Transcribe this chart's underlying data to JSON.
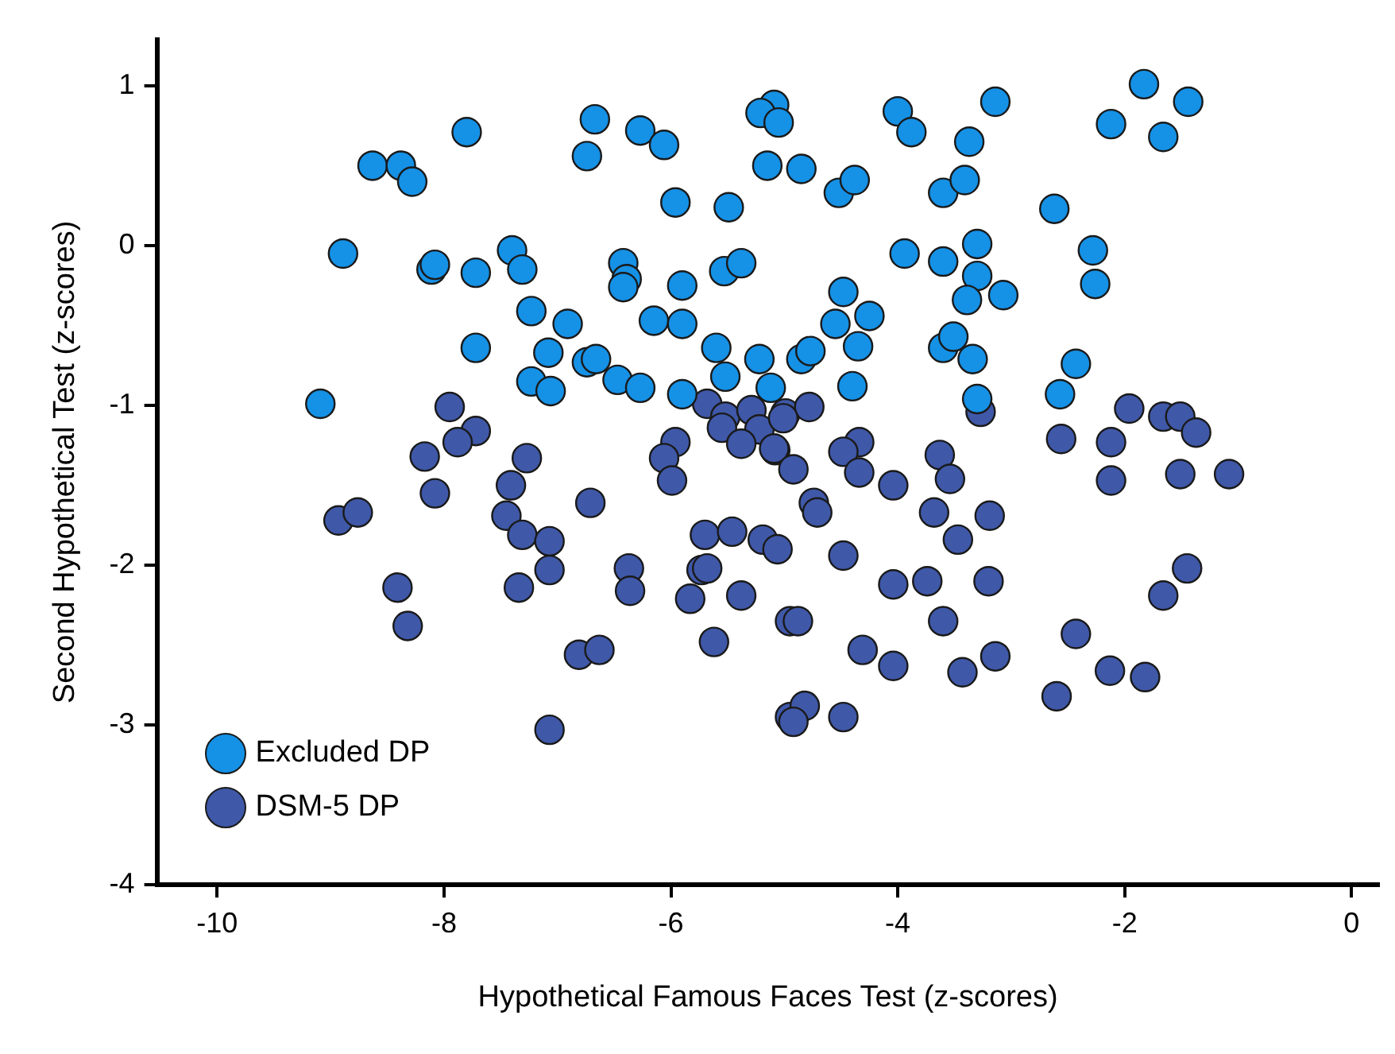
{
  "chart_data": {
    "type": "scatter",
    "xlabel": "Hypothetical Famous Faces Test (z-scores)",
    "ylabel": "Second Hypothetical Test (z-scores)",
    "xlim": [
      -10.53,
      0.24
    ],
    "ylim": [
      -4,
      1.29
    ],
    "xticks": [
      -10,
      -8,
      -6,
      -4,
      -2,
      0
    ],
    "yticks": [
      -4,
      -3,
      -2,
      -1,
      0,
      1
    ],
    "grid": false,
    "legend": "bottom left",
    "marker": "circle",
    "series": [
      {
        "name": "Excluded DP",
        "color": "#1591e6",
        "x": [
          -9.09,
          -8.89,
          -8.63,
          -8.38,
          -8.28,
          -7.8,
          -8.11,
          -8.08,
          -7.72,
          -7.4,
          -7.31,
          -7.23,
          -6.91,
          -7.72,
          -7.08,
          -6.15,
          -5.9,
          -5.6,
          -5.22,
          -6.74,
          -6.66,
          -7.23,
          -7.06,
          -6.47,
          -6.27,
          -5.9,
          -5.52,
          -5.12,
          -6.42,
          -6.39,
          -6.42,
          -5.9,
          -5.53,
          -5.38,
          -5.96,
          -5.49,
          -5.15,
          -5.09,
          -5.21,
          -5.05,
          -6.27,
          -6.06,
          -6.67,
          -6.74,
          -4.0,
          -3.88,
          -3.14,
          -3.37,
          -3.6,
          -3.41,
          -1.83,
          -1.44,
          -2.12,
          -1.66,
          -2.62,
          -4.85,
          -4.52,
          -4.38,
          -3.94,
          -3.6,
          -3.3,
          -3.3,
          -3.39,
          -3.07,
          -2.28,
          -2.26,
          -4.48,
          -4.25,
          -4.55,
          -4.35,
          -4.85,
          -4.77,
          -4.4,
          -3.6,
          -3.51,
          -3.34,
          -3.3,
          -2.43,
          -2.57
        ],
        "values": [
          -0.99,
          -0.05,
          0.5,
          0.5,
          0.4,
          0.71,
          -0.15,
          -0.12,
          -0.17,
          -0.03,
          -0.15,
          -0.41,
          -0.49,
          -0.64,
          -0.67,
          -0.47,
          -0.49,
          -0.64,
          -0.71,
          -0.73,
          -0.71,
          -0.85,
          -0.91,
          -0.84,
          -0.89,
          -0.93,
          -0.82,
          -0.89,
          -0.11,
          -0.21,
          -0.26,
          -0.25,
          -0.16,
          -0.11,
          0.27,
          0.24,
          0.5,
          0.88,
          0.83,
          0.77,
          0.72,
          0.63,
          0.79,
          0.56,
          0.84,
          0.71,
          0.9,
          0.65,
          0.33,
          0.41,
          1.01,
          0.9,
          0.76,
          0.68,
          0.23,
          0.48,
          0.33,
          0.41,
          -0.05,
          -0.1,
          0.01,
          -0.19,
          -0.34,
          -0.31,
          -0.03,
          -0.24,
          -0.29,
          -0.44,
          -0.49,
          -0.63,
          -0.71,
          -0.66,
          -0.88,
          -0.64,
          -0.57,
          -0.71,
          -0.96,
          -0.74,
          -0.93
        ]
      },
      {
        "name": "DSM-5 DP",
        "color": "#3f58a8",
        "x": [
          -7.95,
          -7.72,
          -7.88,
          -8.17,
          -8.08,
          -7.27,
          -7.41,
          -7.45,
          -7.31,
          -7.07,
          -7.07,
          -6.71,
          -8.93,
          -8.76,
          -8.41,
          -8.32,
          -7.34,
          -6.37,
          -6.36,
          -6.81,
          -6.63,
          -7.07,
          -5.96,
          -6.06,
          -5.99,
          -5.68,
          -5.52,
          -5.55,
          -5.29,
          -5.22,
          -5.38,
          -5.08,
          -4.99,
          -5.7,
          -5.46,
          -5.19,
          -5.06,
          -5.73,
          -5.68,
          -5.83,
          -5.38,
          -5.62,
          -4.95,
          -4.95,
          -4.78,
          -5.01,
          -5.09,
          -4.92,
          -4.34,
          -4.48,
          -4.34,
          -4.04,
          -3.27,
          -3.63,
          -3.54,
          -3.68,
          -3.19,
          -3.47,
          -4.74,
          -4.71,
          -4.48,
          -4.04,
          -3.74,
          -3.2,
          -4.88,
          -3.6,
          -4.31,
          -4.04,
          -3.43,
          -3.14,
          -4.82,
          -4.92,
          -4.48,
          -2.56,
          -2.12,
          -2.12,
          -1.96,
          -1.66,
          -1.51,
          -1.37,
          -1.51,
          -1.08,
          -1.45,
          -1.66,
          -2.43,
          -2.6,
          -2.13,
          -1.82
        ],
        "values": [
          -1.01,
          -1.16,
          -1.23,
          -1.32,
          -1.55,
          -1.33,
          -1.5,
          -1.69,
          -1.81,
          -1.85,
          -2.03,
          -1.61,
          -1.72,
          -1.67,
          -2.14,
          -2.38,
          -2.14,
          -2.02,
          -2.16,
          -2.56,
          -2.53,
          -3.03,
          -1.23,
          -1.33,
          -1.47,
          -0.99,
          -1.07,
          -1.14,
          -1.03,
          -1.15,
          -1.24,
          -1.28,
          -1.05,
          -1.81,
          -1.79,
          -1.84,
          -1.9,
          -2.03,
          -2.02,
          -2.21,
          -2.19,
          -2.48,
          -2.35,
          -2.95,
          -1.01,
          -1.08,
          -1.27,
          -1.4,
          -1.23,
          -1.29,
          -1.42,
          -1.5,
          -1.04,
          -1.31,
          -1.46,
          -1.67,
          -1.69,
          -1.84,
          -1.61,
          -1.67,
          -1.94,
          -2.12,
          -2.1,
          -2.1,
          -2.35,
          -2.35,
          -2.53,
          -2.63,
          -2.67,
          -2.57,
          -2.88,
          -2.98,
          -2.95,
          -1.21,
          -1.23,
          -1.47,
          -1.02,
          -1.07,
          -1.07,
          -1.17,
          -1.43,
          -1.43,
          -2.02,
          -2.19,
          -2.43,
          -2.82,
          -2.66,
          -2.7
        ]
      }
    ]
  }
}
